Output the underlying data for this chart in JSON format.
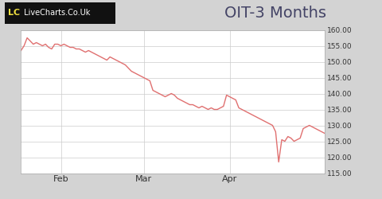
{
  "title": "OIT-3 Months",
  "title_fontsize": 14,
  "background_color": "#d3d3d3",
  "plot_bg_color": "#ffffff",
  "line_color": "#e07070",
  "ylim": [
    115.0,
    160.0
  ],
  "yticks": [
    115.0,
    120.0,
    125.0,
    130.0,
    135.0,
    140.0,
    145.0,
    150.0,
    155.0,
    160.0
  ],
  "xlabel_months": [
    "Feb",
    "Mar",
    "Apr"
  ],
  "grid_color": "#cccccc",
  "lc_box_color": "#111111",
  "lc_text_lc": "#f0e040",
  "lc_text_rest": "#ffffff",
  "lc_site": "LiveCharts.Co.Uk",
  "feb_idx": 13,
  "mar_idx": 40,
  "apr_idx": 68,
  "prices": [
    153.5,
    155.0,
    157.5,
    156.5,
    155.5,
    156.0,
    155.5,
    155.0,
    155.5,
    154.5,
    154.0,
    155.5,
    155.5,
    155.0,
    155.5,
    155.0,
    154.5,
    154.5,
    154.0,
    154.0,
    153.5,
    153.0,
    153.5,
    153.0,
    152.5,
    152.0,
    151.5,
    151.0,
    150.5,
    151.5,
    151.0,
    150.5,
    150.0,
    149.5,
    149.0,
    148.0,
    147.0,
    146.5,
    146.0,
    145.5,
    145.0,
    144.5,
    144.0,
    141.0,
    140.5,
    140.0,
    139.5,
    139.0,
    139.5,
    140.0,
    139.5,
    138.5,
    138.0,
    137.5,
    137.0,
    136.5,
    136.5,
    136.0,
    135.5,
    136.0,
    135.5,
    135.0,
    135.5,
    135.0,
    135.0,
    135.5,
    136.0,
    139.5,
    139.0,
    138.5,
    138.0,
    135.5,
    135.0,
    134.5,
    134.0,
    133.5,
    133.0,
    132.5,
    132.0,
    131.5,
    131.0,
    130.5,
    130.0,
    128.0,
    118.5,
    125.5,
    125.0,
    126.5,
    126.0,
    125.0,
    125.5,
    126.0,
    129.0,
    129.5,
    130.0,
    129.5,
    129.0,
    128.5,
    128.0,
    127.5
  ]
}
